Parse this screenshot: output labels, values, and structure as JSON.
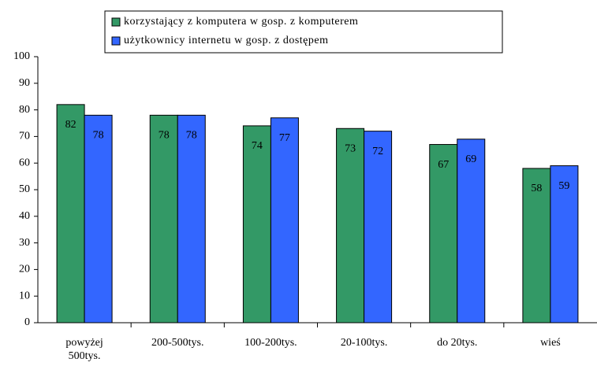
{
  "chart_data": {
    "type": "bar",
    "categories": [
      "powyżej 500tys.",
      "200-500tys.",
      "100-200tys.",
      "20-100tys.",
      "do 20tys.",
      "wieś"
    ],
    "series": [
      {
        "name": "korzystający z komputera w gosp. z komputerem",
        "color": "#339966",
        "values": [
          82,
          78,
          74,
          73,
          67,
          58
        ]
      },
      {
        "name": "użytkownicy internetu w gosp. z dostępem",
        "color": "#3366ff",
        "values": [
          78,
          78,
          77,
          72,
          69,
          59
        ]
      }
    ],
    "ylim": [
      0,
      100
    ],
    "yticks": [
      0,
      10,
      20,
      30,
      40,
      50,
      60,
      70,
      80,
      90,
      100
    ],
    "grid": false,
    "legend": "top"
  }
}
